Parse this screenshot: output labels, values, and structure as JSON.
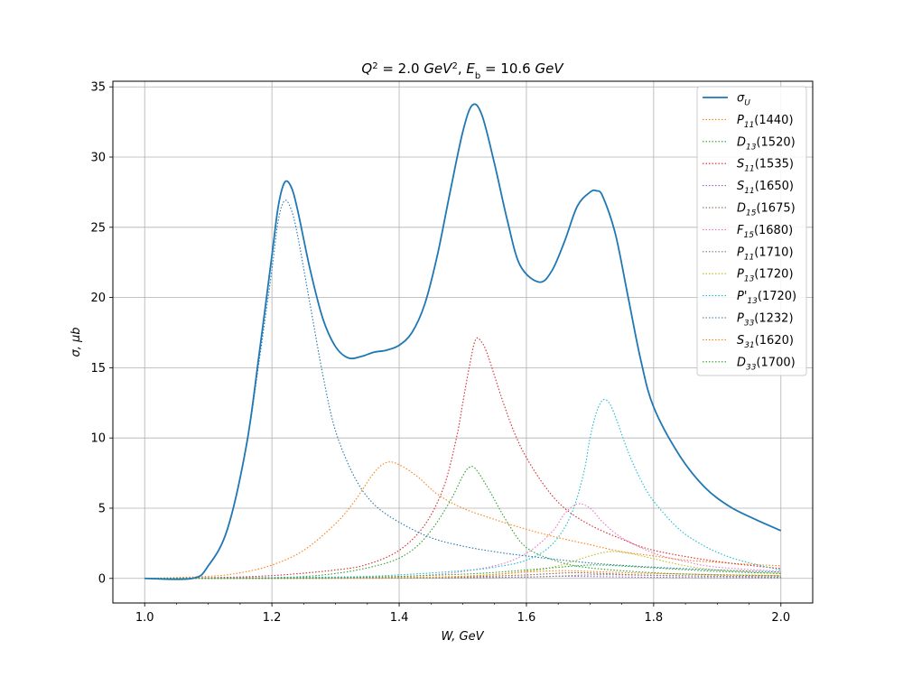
{
  "chart_data": {
    "type": "line",
    "title": "Q² = 2.0 GeV², E_b = 10.6 GeV",
    "title_parts": {
      "q": "Q",
      "q_sup": "2",
      "eq1": " = 2.0 ",
      "unit1": "GeV",
      "unit1_sup": "2",
      "sep": ",  ",
      "e": "E",
      "e_sub": "b",
      "eq2": " = 10.6 ",
      "unit2": "GeV"
    },
    "xlabel": "W, GeV",
    "ylabel": "σ, μb",
    "xlim": [
      0.95,
      2.05
    ],
    "ylim": [
      -1.75,
      35.4
    ],
    "xticks": [
      1.0,
      1.2,
      1.4,
      1.6,
      1.8,
      2.0
    ],
    "xtick_labels": [
      "1.0",
      "1.2",
      "1.4",
      "1.6",
      "1.8",
      "2.0"
    ],
    "yticks": [
      0,
      5,
      10,
      15,
      20,
      25,
      30,
      35
    ],
    "ytick_labels": [
      "0",
      "5",
      "10",
      "15",
      "20",
      "25",
      "30",
      "35"
    ],
    "grid": true,
    "legend_position": "top-right",
    "series": [
      {
        "name": "σ_U",
        "label_main": "σ",
        "label_sub": "U",
        "label_tail": "",
        "style": "solid",
        "color": "#1f77b4",
        "points": [
          [
            1.0,
            0
          ],
          [
            1.075,
            0
          ],
          [
            1.1,
            0.9
          ],
          [
            1.13,
            3.5
          ],
          [
            1.16,
            9.5
          ],
          [
            1.18,
            16
          ],
          [
            1.2,
            23
          ],
          [
            1.21,
            26.5
          ],
          [
            1.22,
            28.2
          ],
          [
            1.23,
            27.9
          ],
          [
            1.24,
            26.3
          ],
          [
            1.26,
            22
          ],
          [
            1.28,
            18.5
          ],
          [
            1.3,
            16.5
          ],
          [
            1.32,
            15.7
          ],
          [
            1.34,
            15.8
          ],
          [
            1.36,
            16.1
          ],
          [
            1.38,
            16.25
          ],
          [
            1.4,
            16.6
          ],
          [
            1.42,
            17.5
          ],
          [
            1.44,
            19.5
          ],
          [
            1.46,
            23
          ],
          [
            1.48,
            27.5
          ],
          [
            1.5,
            31.8
          ],
          [
            1.515,
            33.7
          ],
          [
            1.53,
            33
          ],
          [
            1.55,
            29.5
          ],
          [
            1.57,
            25.5
          ],
          [
            1.59,
            22.3
          ],
          [
            1.62,
            21.1
          ],
          [
            1.64,
            21.9
          ],
          [
            1.66,
            24
          ],
          [
            1.68,
            26.5
          ],
          [
            1.7,
            27.5
          ],
          [
            1.71,
            27.6
          ],
          [
            1.72,
            27.2
          ],
          [
            1.74,
            24.5
          ],
          [
            1.76,
            20
          ],
          [
            1.78,
            15.5
          ],
          [
            1.8,
            12.2
          ],
          [
            1.84,
            8.8
          ],
          [
            1.88,
            6.5
          ],
          [
            1.92,
            5.1
          ],
          [
            1.96,
            4.2
          ],
          [
            2.0,
            3.4
          ]
        ]
      },
      {
        "name": "P11(1440)",
        "label_main": "P",
        "label_sub": "11",
        "label_tail": "(1440)",
        "style": "dotted",
        "color": "#ff7f0e",
        "points": [
          [
            1.0,
            0
          ],
          [
            1.1,
            0.15
          ],
          [
            1.15,
            0.4
          ],
          [
            1.2,
            0.95
          ],
          [
            1.25,
            2
          ],
          [
            1.3,
            3.9
          ],
          [
            1.33,
            5.5
          ],
          [
            1.36,
            7.5
          ],
          [
            1.38,
            8.25
          ],
          [
            1.4,
            8.1
          ],
          [
            1.43,
            7.2
          ],
          [
            1.46,
            6
          ],
          [
            1.5,
            5
          ],
          [
            1.55,
            4.2
          ],
          [
            1.6,
            3.5
          ],
          [
            1.65,
            2.9
          ],
          [
            1.7,
            2.4
          ],
          [
            1.75,
            1.9
          ],
          [
            1.8,
            1.6
          ],
          [
            1.85,
            1.3
          ],
          [
            1.9,
            1.15
          ],
          [
            1.95,
            1
          ],
          [
            2.0,
            0.9
          ]
        ]
      },
      {
        "name": "D13(1520)",
        "label_main": "D",
        "label_sub": "13",
        "label_tail": "(1520)",
        "style": "dotted",
        "color": "#2ca02c",
        "points": [
          [
            1.0,
            0
          ],
          [
            1.2,
            0.05
          ],
          [
            1.3,
            0.35
          ],
          [
            1.38,
            1.1
          ],
          [
            1.42,
            2
          ],
          [
            1.45,
            3.4
          ],
          [
            1.48,
            5.5
          ],
          [
            1.5,
            7.3
          ],
          [
            1.51,
            7.9
          ],
          [
            1.52,
            7.8
          ],
          [
            1.54,
            6.4
          ],
          [
            1.57,
            4
          ],
          [
            1.6,
            2.2
          ],
          [
            1.65,
            1.2
          ],
          [
            1.7,
            0.75
          ],
          [
            1.8,
            0.4
          ],
          [
            1.9,
            0.25
          ],
          [
            2.0,
            0.18
          ]
        ]
      },
      {
        "name": "S11(1535)",
        "label_main": "S",
        "label_sub": "11",
        "label_tail": "(1535)",
        "style": "dotted",
        "color": "#d62728",
        "points": [
          [
            1.0,
            0
          ],
          [
            1.1,
            0.05
          ],
          [
            1.2,
            0.2
          ],
          [
            1.3,
            0.6
          ],
          [
            1.35,
            1
          ],
          [
            1.4,
            2
          ],
          [
            1.44,
            3.8
          ],
          [
            1.47,
            6.5
          ],
          [
            1.49,
            10
          ],
          [
            1.5,
            12.5
          ],
          [
            1.51,
            15
          ],
          [
            1.52,
            17
          ],
          [
            1.53,
            16.8
          ],
          [
            1.54,
            15.8
          ],
          [
            1.56,
            13
          ],
          [
            1.58,
            10.5
          ],
          [
            1.6,
            8.6
          ],
          [
            1.63,
            6.5
          ],
          [
            1.66,
            5
          ],
          [
            1.7,
            3.8
          ],
          [
            1.75,
            2.8
          ],
          [
            1.8,
            2
          ],
          [
            1.9,
            1.2
          ],
          [
            2.0,
            0.7
          ]
        ]
      },
      {
        "name": "S11(1650)",
        "label_main": "S",
        "label_sub": "11",
        "label_tail": "(1650)",
        "style": "dotted",
        "color": "#9467bd",
        "points": [
          [
            1.0,
            0
          ],
          [
            1.4,
            0.02
          ],
          [
            1.5,
            0.05
          ],
          [
            1.6,
            0.1
          ],
          [
            1.65,
            0.15
          ],
          [
            1.7,
            0.13
          ],
          [
            1.8,
            0.08
          ],
          [
            2.0,
            0.04
          ]
        ]
      },
      {
        "name": "D15(1675)",
        "label_main": "D",
        "label_sub": "15",
        "label_tail": "(1675)",
        "style": "dotted",
        "color": "#8c564b",
        "points": [
          [
            1.0,
            0
          ],
          [
            1.4,
            0.03
          ],
          [
            1.5,
            0.1
          ],
          [
            1.6,
            0.25
          ],
          [
            1.67,
            0.4
          ],
          [
            1.72,
            0.35
          ],
          [
            1.8,
            0.22
          ],
          [
            2.0,
            0.1
          ]
        ]
      },
      {
        "name": "F15(1680)",
        "label_main": "F",
        "label_sub": "15",
        "label_tail": "(1680)",
        "style": "dotted",
        "color": "#e377c2",
        "points": [
          [
            1.0,
            0
          ],
          [
            1.3,
            0.05
          ],
          [
            1.45,
            0.25
          ],
          [
            1.55,
            0.9
          ],
          [
            1.6,
            1.8
          ],
          [
            1.64,
            3.3
          ],
          [
            1.66,
            4.6
          ],
          [
            1.68,
            5.3
          ],
          [
            1.7,
            5
          ],
          [
            1.72,
            4
          ],
          [
            1.75,
            2.9
          ],
          [
            1.8,
            1.8
          ],
          [
            1.85,
            1.2
          ],
          [
            1.9,
            0.8
          ],
          [
            2.0,
            0.5
          ]
        ]
      },
      {
        "name": "P11(1710)",
        "label_main": "P",
        "label_sub": "11",
        "label_tail": "(1710)",
        "style": "dotted",
        "color": "#7f7f7f",
        "points": [
          [
            1.0,
            0
          ],
          [
            1.4,
            0.02
          ],
          [
            1.6,
            0.1
          ],
          [
            1.7,
            0.25
          ],
          [
            1.75,
            0.25
          ],
          [
            1.85,
            0.18
          ],
          [
            2.0,
            0.1
          ]
        ]
      },
      {
        "name": "P13(1720)",
        "label_main": "P",
        "label_sub": "13",
        "label_tail": "(1720)",
        "style": "dotted",
        "color": "#bcbd22",
        "points": [
          [
            1.0,
            0
          ],
          [
            1.4,
            0.05
          ],
          [
            1.5,
            0.15
          ],
          [
            1.6,
            0.5
          ],
          [
            1.65,
            0.9
          ],
          [
            1.7,
            1.6
          ],
          [
            1.73,
            1.9
          ],
          [
            1.76,
            1.8
          ],
          [
            1.8,
            1.4
          ],
          [
            1.85,
            0.9
          ],
          [
            1.9,
            0.6
          ],
          [
            2.0,
            0.35
          ]
        ]
      },
      {
        "name": "P'13(1720)",
        "label_main": "P'",
        "label_sub": "13",
        "label_tail": "(1720)",
        "style": "dotted",
        "color": "#17becf",
        "points": [
          [
            1.0,
            0
          ],
          [
            1.3,
            0.1
          ],
          [
            1.4,
            0.25
          ],
          [
            1.5,
            0.55
          ],
          [
            1.55,
            0.8
          ],
          [
            1.6,
            1.3
          ],
          [
            1.64,
            2.4
          ],
          [
            1.67,
            4.5
          ],
          [
            1.69,
            7.5
          ],
          [
            1.7,
            10
          ],
          [
            1.71,
            11.8
          ],
          [
            1.72,
            12.7
          ],
          [
            1.73,
            12.5
          ],
          [
            1.74,
            11.5
          ],
          [
            1.76,
            9
          ],
          [
            1.78,
            7
          ],
          [
            1.8,
            5.5
          ],
          [
            1.84,
            3.5
          ],
          [
            1.88,
            2.3
          ],
          [
            1.92,
            1.5
          ],
          [
            1.96,
            1
          ],
          [
            2.0,
            0.6
          ]
        ]
      },
      {
        "name": "P33(1232)",
        "label_main": "P",
        "label_sub": "33",
        "label_tail": "(1232)",
        "style": "dotted",
        "color": "#1f77b4",
        "points": [
          [
            1.0,
            0
          ],
          [
            1.075,
            0
          ],
          [
            1.1,
            0.9
          ],
          [
            1.13,
            3.5
          ],
          [
            1.16,
            9.5
          ],
          [
            1.18,
            15.5
          ],
          [
            1.2,
            22
          ],
          [
            1.21,
            25.5
          ],
          [
            1.22,
            26.9
          ],
          [
            1.23,
            26.3
          ],
          [
            1.24,
            24.5
          ],
          [
            1.26,
            19.5
          ],
          [
            1.28,
            14.5
          ],
          [
            1.3,
            10.5
          ],
          [
            1.33,
            7.2
          ],
          [
            1.36,
            5.3
          ],
          [
            1.4,
            4
          ],
          [
            1.45,
            2.9
          ],
          [
            1.5,
            2.3
          ],
          [
            1.55,
            1.9
          ],
          [
            1.6,
            1.6
          ],
          [
            1.7,
            1.1
          ],
          [
            1.8,
            0.8
          ],
          [
            1.9,
            0.6
          ],
          [
            2.0,
            0.45
          ]
        ]
      },
      {
        "name": "S31(1620)",
        "label_main": "S",
        "label_sub": "31",
        "label_tail": "(1620)",
        "style": "dotted",
        "color": "#ff7f0e",
        "points": [
          [
            1.0,
            0
          ],
          [
            1.3,
            0.02
          ],
          [
            1.5,
            0.15
          ],
          [
            1.6,
            0.45
          ],
          [
            1.65,
            0.55
          ],
          [
            1.7,
            0.5
          ],
          [
            1.8,
            0.35
          ],
          [
            2.0,
            0.2
          ]
        ]
      },
      {
        "name": "D33(1700)",
        "label_main": "D",
        "label_sub": "33",
        "label_tail": "(1700)",
        "style": "dotted",
        "color": "#2ca02c",
        "points": [
          [
            1.0,
            0
          ],
          [
            1.3,
            0.05
          ],
          [
            1.5,
            0.3
          ],
          [
            1.6,
            0.6
          ],
          [
            1.68,
            0.9
          ],
          [
            1.72,
            0.95
          ],
          [
            1.8,
            0.75
          ],
          [
            1.9,
            0.5
          ],
          [
            2.0,
            0.35
          ]
        ]
      }
    ]
  }
}
